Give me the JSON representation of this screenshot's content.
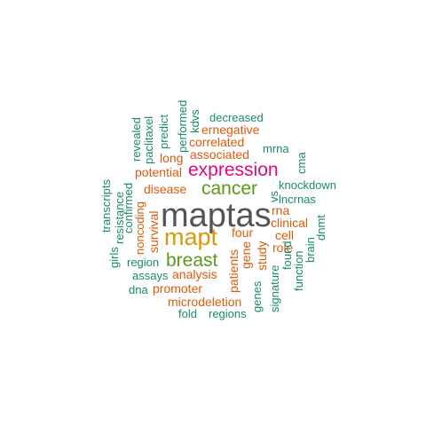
{
  "colors": {
    "top": "#555555",
    "second": "#d99a06",
    "third": "#5a9a1a",
    "fourth": "#e2087a",
    "mid": "#d95b0c",
    "low": "#1a8a6a"
  },
  "words": {
    "maptas": "maptas",
    "mapt": "mapt",
    "breast": "breast",
    "expression": "expression",
    "cancer": "cancer",
    "associated": "associated",
    "correlated": "correlated",
    "ernegative": "ernegative",
    "potential": "potential",
    "long": "long",
    "disease": "disease",
    "survival": "survival",
    "noncoding": "noncoding",
    "analysis": "analysis",
    "promoter": "promoter",
    "microdeletion": "microdeletion",
    "patients": "patients",
    "gene": "gene",
    "four": "four",
    "study": "study",
    "role": "role",
    "cell": "cell",
    "clinical": "clinical",
    "rna": "rna",
    "decreased": "decreased",
    "mrna": "mrna",
    "cma": "cma",
    "knockdown": "knockdown",
    "lncrnas": "lncrnas",
    "dnmt": "dnmt",
    "brain": "brain",
    "function": "function",
    "found": "found",
    "signature": "signature",
    "genes": "genes",
    "regions": "regions",
    "fold": "fold",
    "dna": "dna",
    "assays": "assays",
    "region": "region",
    "girls": "girls",
    "resistance": "resistance",
    "transcripts": "transcripts",
    "confirmed": "confirmed",
    "revealed": "revealed",
    "paclitaxel": "paclitaxel",
    "predict": "predict",
    "performed": "performed",
    "kdvs": "kdvs",
    "vs": "vs"
  }
}
